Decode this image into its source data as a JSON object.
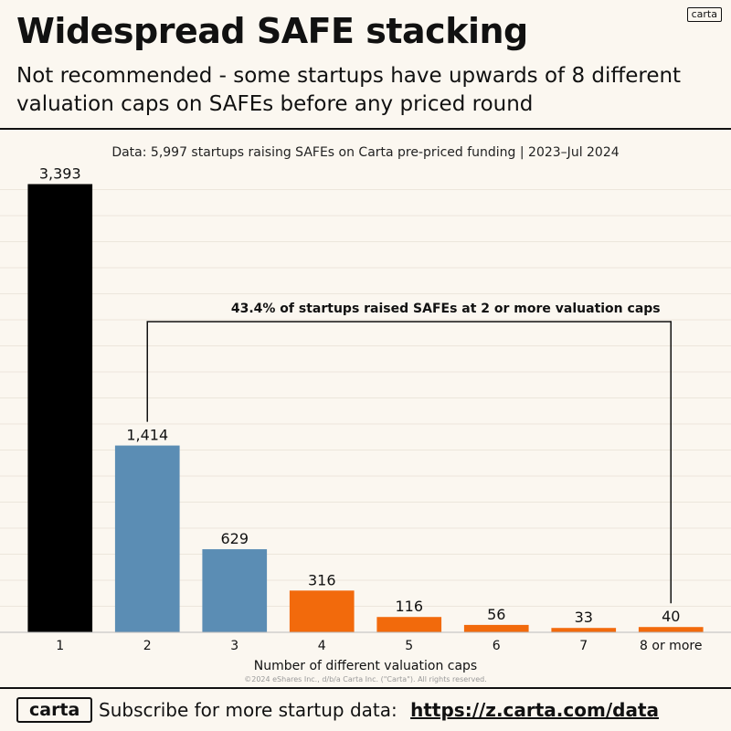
{
  "header": {
    "brand_badge": "carta",
    "title": "Widespread SAFE stacking",
    "subtitle": "Not recommended - some startups have upwards of 8 different valuation caps on SAFEs before any priced round"
  },
  "source_note": "Data: 5,997 startups raising SAFEs on Carta pre-priced funding | 2023–Jul 2024",
  "colors": {
    "one_cap": "#000000",
    "two_three_caps": "#5b8db4",
    "four_plus_caps": "#f26a0c",
    "background": "#fbf7f0"
  },
  "chart_data": {
    "type": "bar",
    "categories": [
      "1",
      "2",
      "3",
      "4",
      "5",
      "6",
      "7",
      "8 or more"
    ],
    "values": [
      3393,
      1414,
      629,
      316,
      116,
      56,
      33,
      40
    ],
    "value_labels": [
      "3,393",
      "1,414",
      "629",
      "316",
      "116",
      "56",
      "33",
      "40"
    ],
    "bar_colors": [
      "#000000",
      "#5b8db4",
      "#5b8db4",
      "#f26a0c",
      "#f26a0c",
      "#f26a0c",
      "#f26a0c",
      "#f26a0c"
    ],
    "xlabel": "Number of different valuation caps",
    "ylabel": "",
    "ylim": [
      0,
      3500
    ],
    "grid": true,
    "annotation": {
      "text": "43.4% of startups raised SAFEs at 2 or more valuation caps",
      "from_category": "2",
      "to_category": "8 or more"
    }
  },
  "copyright": "©2024 eShares Inc., d/b/a Carta Inc. (\"Carta\"). All rights reserved.",
  "footer": {
    "logo": "carta",
    "cta_text": "Subscribe for more startup data:",
    "link_text": "https://z.carta.com/data"
  }
}
